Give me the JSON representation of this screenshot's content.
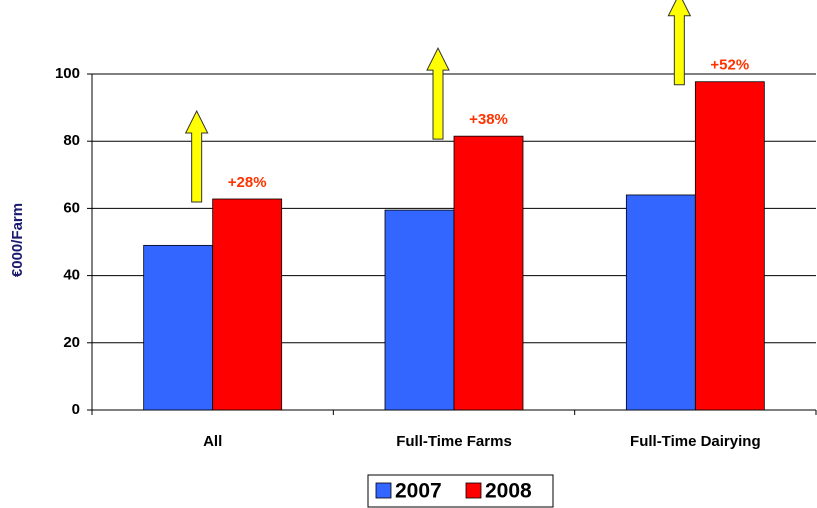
{
  "chart_data": {
    "type": "bar",
    "y_label": "€000/Farm",
    "categories": [
      "All",
      "Full-Time Farms",
      "Full-Time Dairying"
    ],
    "series": [
      {
        "name": "2007",
        "color": "#3366ff",
        "values": [
          49,
          59.5,
          64
        ]
      },
      {
        "name": "2008",
        "color": "#ff0000",
        "values": [
          62.8,
          81.5,
          97.7
        ]
      }
    ],
    "annotations": [
      "+28%",
      "+38%",
      "+52%"
    ],
    "annotation_color": "#ff3300",
    "ylim": [
      0,
      100
    ],
    "yticks": [
      0,
      20,
      40,
      60,
      80,
      100
    ],
    "grid": true
  }
}
